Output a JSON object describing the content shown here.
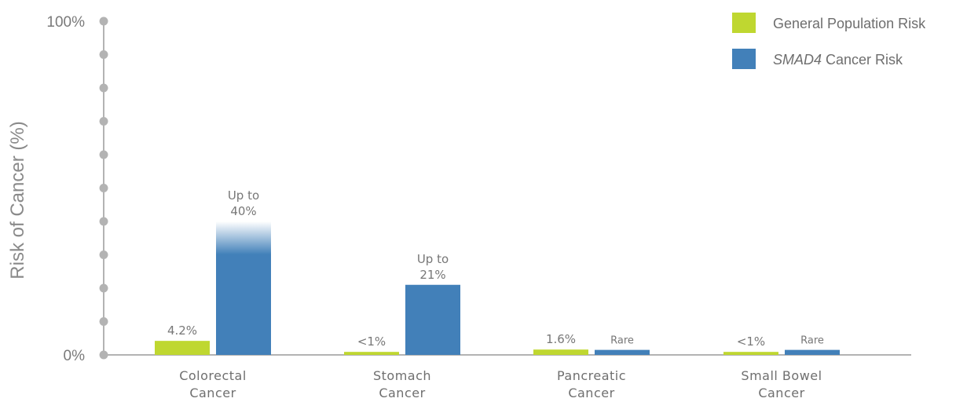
{
  "chart_data": {
    "type": "bar",
    "title": "",
    "ylabel": "Risk of Cancer (%)",
    "ylim": [
      0,
      100
    ],
    "y_ticks": [
      "0%",
      "100%"
    ],
    "categories": [
      [
        "Colorectal",
        "Cancer"
      ],
      [
        "Stomach",
        "Cancer"
      ],
      [
        "Pancreatic",
        "Cancer"
      ],
      [
        "Small Bowel",
        "Cancer"
      ]
    ],
    "series": [
      {
        "name": "General Population Risk",
        "color": "#bfd730",
        "values": [
          4.2,
          0.9,
          1.6,
          0.9
        ],
        "labels": [
          [
            "4.2%"
          ],
          [
            "<1%"
          ],
          [
            "1.6%"
          ],
          [
            "<1%"
          ]
        ]
      },
      {
        "name_italic": "SMAD4",
        "name_rest": " Cancer Risk",
        "color": "#4280b9",
        "values": [
          40,
          21,
          1.5,
          1.5
        ],
        "labels": [
          [
            "Up to",
            "40%"
          ],
          [
            "Up to",
            "21%"
          ],
          [
            "Rare"
          ],
          [
            "Rare"
          ]
        ]
      }
    ],
    "legend_position": "top-right",
    "grid": false
  }
}
